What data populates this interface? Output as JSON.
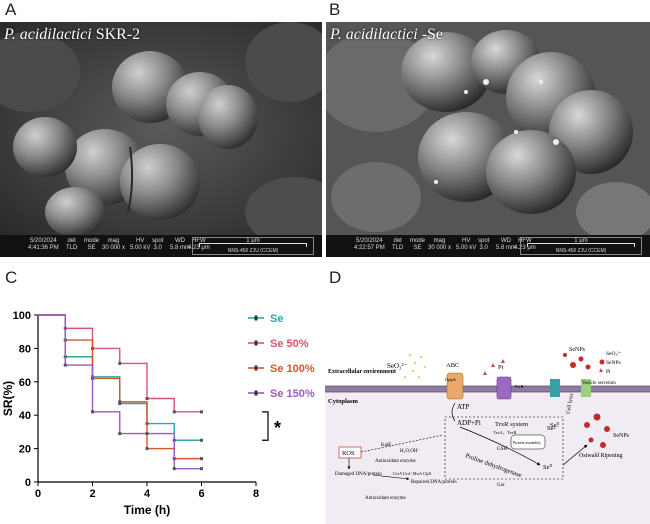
{
  "panels": {
    "a": {
      "letter": "A",
      "title_italic": "P. acidilactici",
      "title_rest": " SKR-2",
      "databar": {
        "date": "5/20/2024",
        "time": "4:41:36 PM",
        "det": "TLD",
        "mode": "SE",
        "mag": "30 000 x",
        "hv": "5.00 kV",
        "spot": "3.0",
        "wd": "5.8 mm",
        "hfw": "4.23 μm",
        "scale": "1 μm",
        "instrument": "NNS-450 ZJU (CCEM)"
      }
    },
    "b": {
      "letter": "B",
      "title_italic": "P. acidilactici",
      "title_rest": " -Se",
      "databar": {
        "date": "5/20/2024",
        "time": "4:22:57 PM",
        "det": "TLD",
        "mode": "SE",
        "mag": "30 000 x",
        "hv": "5.00 kV",
        "spot": "3.0",
        "wd": "5.8 mm",
        "hfw": "4.23 μm",
        "scale": "1 μm",
        "instrument": "NNS-450 ZJU (CCEM)"
      }
    },
    "c": {
      "letter": "C"
    },
    "d": {
      "letter": "D"
    }
  },
  "databar_headers": {
    "det": "det",
    "mode": "mode",
    "mag": "mag",
    "hv": "HV",
    "spot": "spot",
    "wd": "WD",
    "hfw": "HFW"
  },
  "chart_data": {
    "type": "line",
    "step": true,
    "xlabel": "Time (h)",
    "ylabel": "SR(%)",
    "xlim": [
      0,
      8
    ],
    "ylim": [
      0,
      100
    ],
    "xticks": [
      0,
      2,
      4,
      6,
      8
    ],
    "yticks": [
      0,
      20,
      40,
      60,
      80,
      100
    ],
    "legend_position": "top-right",
    "annotation": "*",
    "series": [
      {
        "name": "Se",
        "color": "#2aa8a8",
        "x": [
          0,
          1,
          2,
          3,
          4,
          5,
          6
        ],
        "y": [
          100,
          75,
          63,
          47,
          35,
          25,
          25
        ]
      },
      {
        "name": "Se 50%",
        "color": "#d9566a",
        "x": [
          0,
          1,
          2,
          3,
          4,
          5,
          6
        ],
        "y": [
          100,
          92,
          80,
          71,
          50,
          42,
          42
        ]
      },
      {
        "name": "Se 100%",
        "color": "#d9542a",
        "x": [
          0,
          1,
          2,
          3,
          4,
          5,
          6
        ],
        "y": [
          100,
          85,
          62,
          48,
          20,
          14,
          14
        ]
      },
      {
        "name": "Se 150%",
        "color": "#9a5ac0",
        "x": [
          0,
          1,
          2,
          3,
          4,
          5,
          6
        ],
        "y": [
          100,
          70,
          42,
          29,
          29,
          8,
          8
        ]
      }
    ]
  },
  "diagram": {
    "extracellular": "Extracellular environment",
    "cytoplasm": "Cytoplasm",
    "seo3": "SeO₃²⁻",
    "abc": "ABC",
    "oppa": "OppA",
    "atp": "ATP",
    "adp": "ADP+Pi",
    "pi_top": "Pi",
    "pstb": "PstB",
    "trxr": "TrxR system",
    "trxa": "TrxA、TrxB",
    "gsh": "GSH",
    "proline": "Proline dehydrogenase",
    "se2": "Se²⁻",
    "se0": "Se⁰",
    "se0b": "Se⁰",
    "gor": "Gor",
    "ros": "ROS",
    "katE": "KatE",
    "h2o": "H₂O,OH⁻",
    "antiox": "Antioxidant enzyme",
    "damaged": "Damaged DNA/protein",
    "uvra": "UvrA UvrC MsrA ClpX",
    "repaired": "Repaired DNA/protein",
    "antiox2": "Antioxidant enzyme",
    "cell_lysis": "Cell lysis",
    "vesicle": "Vesicle secretion",
    "senps_top": "SeNPs",
    "senps_right": "SeNPs",
    "ostwald": "Ostwald Ripening",
    "legend_seo3": "SeO₃²⁻",
    "legend_senps": "SeNPs",
    "legend_pi": "Pi",
    "protein_assembly": "Protein assembly"
  }
}
